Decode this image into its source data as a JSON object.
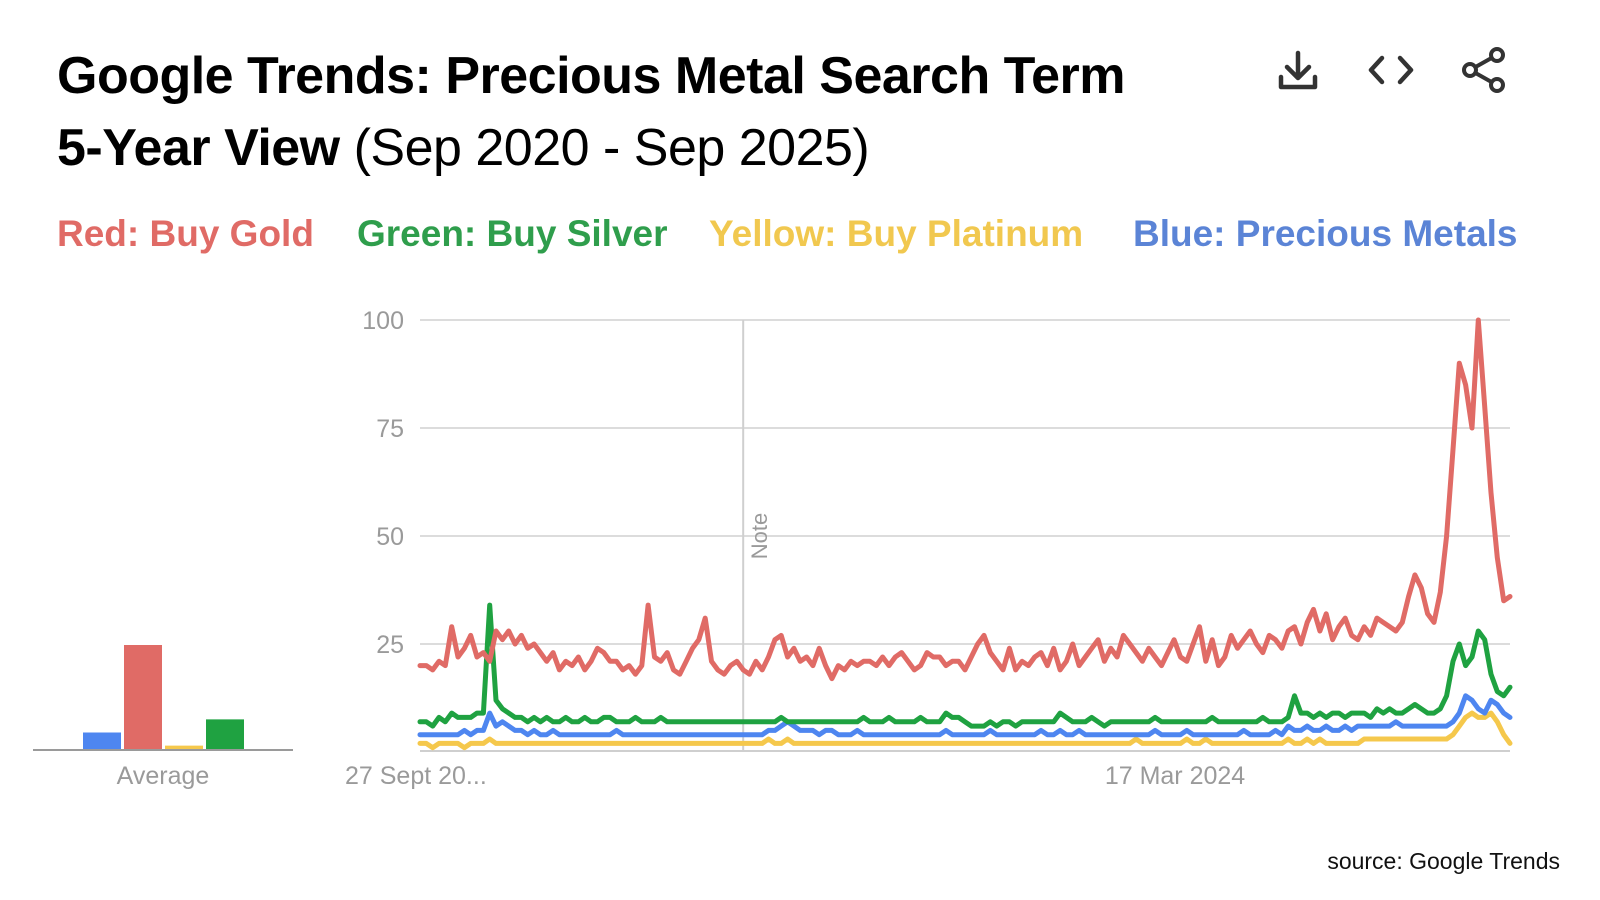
{
  "header": {
    "title_bold_line1": "Google Trends: Precious Metal Search Term",
    "title_bold_line2": "5-Year View",
    "title_normal_line2": " (Sep 2020 - Sep 2025)"
  },
  "toolbar": {
    "download_icon": "download-icon",
    "embed_icon": "code-icon",
    "share_icon": "share-icon"
  },
  "legend": {
    "red": "Red: Buy Gold",
    "green": "Green: Buy Silver",
    "yellow": "Yellow: Buy Platinum",
    "blue": "Blue: Precious Metals"
  },
  "colors": {
    "red": "#e06b66",
    "green": "#1fa241",
    "yellow": "#f5c84c",
    "blue": "#4e86f0",
    "legend_red": "#e06b66",
    "legend_green": "#2f9e4c",
    "legend_yellow": "#f1c84f",
    "legend_blue": "#5b84d6"
  },
  "average_chart": {
    "label": "Average",
    "bars": [
      {
        "series": "Blue: Precious Metals",
        "color": "blue",
        "value": 4
      },
      {
        "series": "Red: Buy Gold",
        "color": "red",
        "value": 24
      },
      {
        "series": "Yellow: Buy Platinum",
        "color": "yellow",
        "value": 1
      },
      {
        "series": "Green: Buy Silver",
        "color": "green",
        "value": 7
      }
    ]
  },
  "chart_data": {
    "type": "line",
    "title": "",
    "xlabel": "",
    "ylabel": "",
    "ylim": [
      0,
      100
    ],
    "yticks": [
      "100",
      "75",
      "50",
      "25"
    ],
    "xtick_labels": [
      "27 Sept 20...",
      "17 Mar 2024"
    ],
    "note_label": "Note",
    "note_index": 51,
    "grid": true,
    "series": [
      {
        "name": "Red: Buy Gold",
        "color": "red",
        "values": [
          20,
          20,
          19,
          21,
          20,
          29,
          22,
          24,
          27,
          22,
          23,
          21,
          28,
          26,
          28,
          25,
          27,
          24,
          25,
          23,
          21,
          23,
          19,
          21,
          20,
          22,
          19,
          21,
          24,
          23,
          21,
          21,
          19,
          20,
          18,
          20,
          34,
          22,
          21,
          23,
          19,
          18,
          21,
          24,
          26,
          31,
          21,
          19,
          18,
          20,
          21,
          19,
          18,
          21,
          19,
          22,
          26,
          27,
          22,
          24,
          21,
          22,
          20,
          24,
          20,
          17,
          20,
          19,
          21,
          20,
          21,
          21,
          20,
          22,
          20,
          22,
          23,
          21,
          19,
          20,
          23,
          22,
          22,
          20,
          21,
          21,
          19,
          22,
          25,
          27,
          23,
          21,
          19,
          24,
          19,
          21,
          20,
          22,
          23,
          20,
          24,
          19,
          21,
          25,
          20,
          22,
          24,
          26,
          21,
          24,
          22,
          27,
          25,
          23,
          21,
          24,
          22,
          20,
          23,
          26,
          22,
          21,
          25,
          29,
          21,
          26,
          20,
          22,
          27,
          24,
          26,
          28,
          25,
          23,
          27,
          26,
          24,
          28,
          29,
          25,
          30,
          33,
          28,
          32,
          26,
          29,
          31,
          27,
          26,
          29,
          27,
          31,
          30,
          29,
          28,
          30,
          36,
          41,
          38,
          32,
          30,
          37,
          50,
          70,
          90,
          85,
          75,
          100,
          80,
          60,
          45,
          35,
          36
        ]
      },
      {
        "name": "Green: Buy Silver",
        "color": "green",
        "values": [
          7,
          7,
          6,
          8,
          7,
          9,
          8,
          8,
          8,
          9,
          9,
          34,
          12,
          10,
          9,
          8,
          8,
          7,
          8,
          7,
          8,
          7,
          7,
          8,
          7,
          7,
          8,
          7,
          7,
          8,
          8,
          7,
          7,
          7,
          8,
          7,
          7,
          7,
          8,
          7,
          7,
          7,
          7,
          7,
          7,
          7,
          7,
          7,
          7,
          7,
          7,
          7,
          7,
          7,
          7,
          7,
          7,
          8,
          7,
          7,
          7,
          7,
          7,
          7,
          7,
          7,
          7,
          7,
          7,
          7,
          8,
          7,
          7,
          7,
          8,
          7,
          7,
          7,
          7,
          8,
          7,
          7,
          7,
          9,
          8,
          8,
          7,
          6,
          6,
          6,
          7,
          6,
          7,
          7,
          6,
          7,
          7,
          7,
          7,
          7,
          7,
          9,
          8,
          7,
          7,
          7,
          8,
          7,
          6,
          7,
          7,
          7,
          7,
          7,
          7,
          7,
          8,
          7,
          7,
          7,
          7,
          7,
          7,
          7,
          7,
          8,
          7,
          7,
          7,
          7,
          7,
          7,
          7,
          8,
          7,
          7,
          7,
          8,
          13,
          9,
          9,
          8,
          9,
          8,
          9,
          9,
          8,
          9,
          9,
          9,
          8,
          10,
          9,
          10,
          9,
          9,
          10,
          11,
          10,
          9,
          9,
          10,
          13,
          21,
          25,
          20,
          22,
          28,
          26,
          18,
          14,
          13,
          15
        ]
      },
      {
        "name": "Yellow: Buy Platinum",
        "color": "yellow",
        "values": [
          2,
          2,
          1,
          2,
          2,
          2,
          2,
          1,
          2,
          2,
          2,
          3,
          2,
          2,
          2,
          2,
          2,
          2,
          2,
          2,
          2,
          2,
          2,
          2,
          2,
          2,
          2,
          2,
          2,
          2,
          2,
          2,
          2,
          2,
          2,
          2,
          2,
          2,
          2,
          2,
          2,
          2,
          2,
          2,
          2,
          2,
          2,
          2,
          2,
          2,
          2,
          2,
          2,
          2,
          2,
          3,
          2,
          2,
          3,
          2,
          2,
          2,
          2,
          2,
          2,
          2,
          2,
          2,
          2,
          2,
          2,
          2,
          2,
          2,
          2,
          2,
          2,
          2,
          2,
          2,
          2,
          2,
          2,
          2,
          2,
          2,
          2,
          2,
          2,
          2,
          2,
          2,
          2,
          2,
          2,
          2,
          2,
          2,
          2,
          2,
          2,
          2,
          2,
          2,
          2,
          2,
          2,
          2,
          2,
          2,
          2,
          2,
          2,
          3,
          2,
          2,
          2,
          2,
          2,
          2,
          2,
          3,
          2,
          2,
          3,
          2,
          2,
          2,
          2,
          2,
          2,
          2,
          2,
          2,
          2,
          2,
          2,
          3,
          2,
          2,
          3,
          2,
          3,
          2,
          2,
          2,
          2,
          2,
          2,
          3,
          3,
          3,
          3,
          3,
          3,
          3,
          3,
          3,
          3,
          3,
          3,
          3,
          3,
          4,
          6,
          8,
          9,
          8,
          8,
          9,
          7,
          4,
          2
        ]
      },
      {
        "name": "Blue: Precious Metals",
        "color": "blue",
        "values": [
          4,
          4,
          4,
          4,
          4,
          4,
          4,
          5,
          4,
          5,
          5,
          9,
          6,
          7,
          6,
          5,
          5,
          4,
          5,
          4,
          4,
          5,
          4,
          4,
          4,
          4,
          4,
          4,
          4,
          4,
          4,
          5,
          4,
          4,
          4,
          4,
          4,
          4,
          4,
          4,
          4,
          4,
          4,
          4,
          4,
          4,
          4,
          4,
          4,
          4,
          4,
          4,
          4,
          4,
          4,
          5,
          5,
          6,
          7,
          6,
          5,
          5,
          5,
          4,
          5,
          5,
          4,
          4,
          4,
          5,
          4,
          4,
          4,
          4,
          4,
          4,
          4,
          4,
          4,
          4,
          4,
          4,
          4,
          5,
          4,
          4,
          4,
          4,
          4,
          4,
          5,
          4,
          4,
          4,
          4,
          4,
          4,
          4,
          5,
          4,
          4,
          5,
          4,
          4,
          5,
          4,
          4,
          4,
          4,
          4,
          4,
          4,
          4,
          4,
          4,
          4,
          5,
          4,
          4,
          4,
          4,
          5,
          4,
          4,
          4,
          4,
          4,
          4,
          4,
          4,
          5,
          4,
          4,
          4,
          4,
          5,
          4,
          6,
          5,
          5,
          6,
          5,
          5,
          6,
          5,
          5,
          6,
          5,
          6,
          6,
          6,
          6,
          6,
          6,
          7,
          6,
          6,
          6,
          6,
          6,
          6,
          6,
          6,
          7,
          9,
          13,
          12,
          10,
          9,
          12,
          11,
          9,
          8
        ]
      }
    ]
  },
  "source_text": "source: Google Trends"
}
